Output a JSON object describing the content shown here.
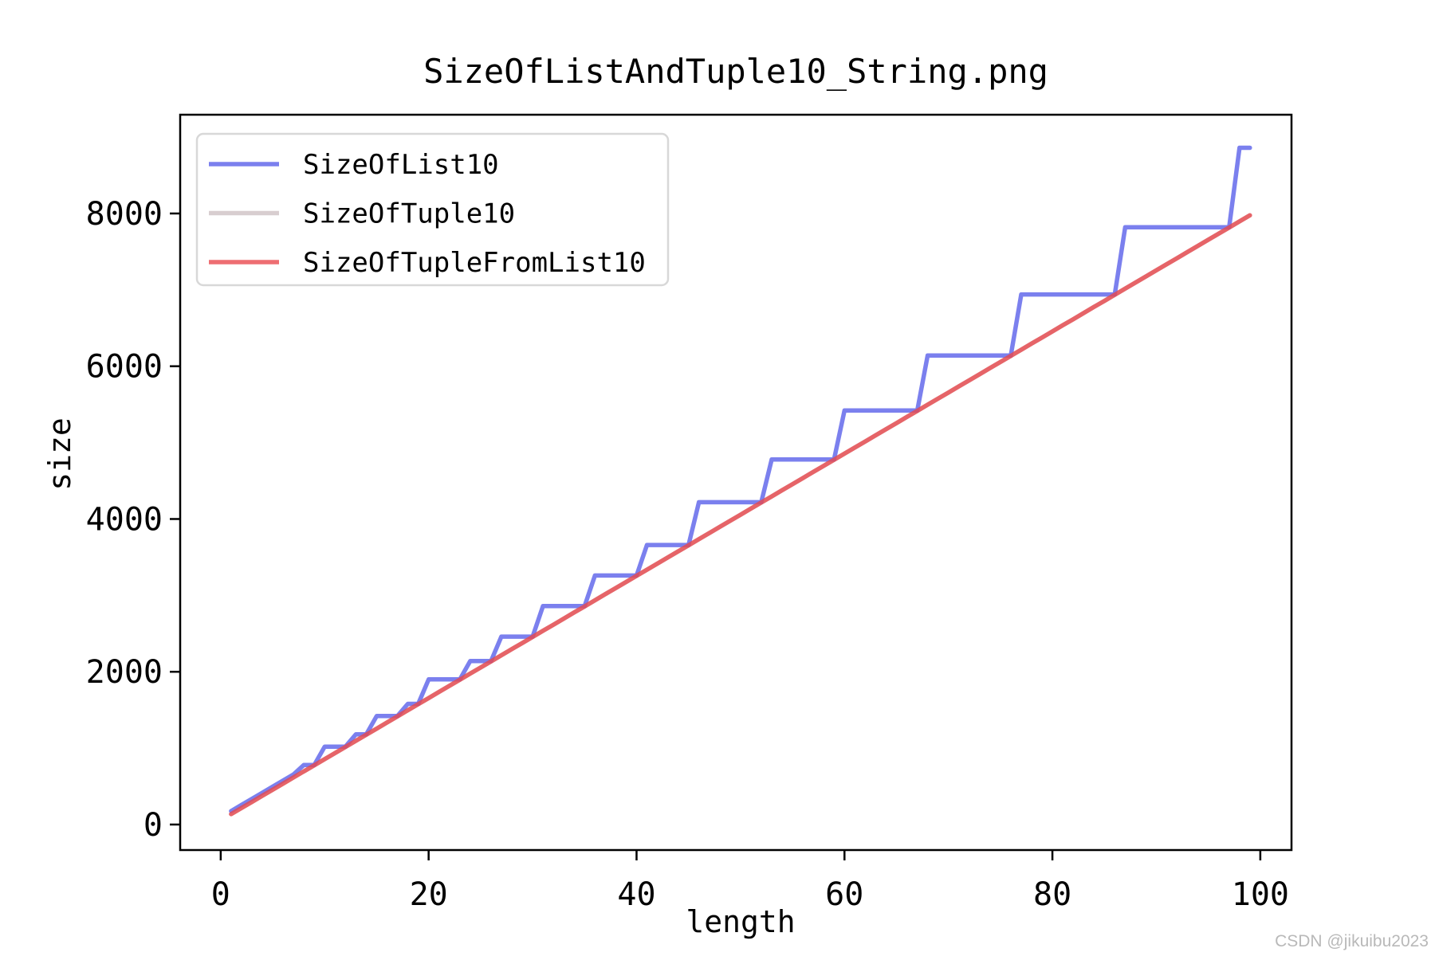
{
  "figure": {
    "background": "#ffffff"
  },
  "watermark": {
    "text": "CSDN @jikuibu2023",
    "color": "#b9b9b9"
  },
  "chart_data": {
    "type": "line",
    "title": "SizeOfListAndTuple10_String.png",
    "xlabel": "length",
    "ylabel": "size",
    "xlim": [
      -3.9,
      103.0
    ],
    "ylim": [
      -334,
      9293
    ],
    "xticks": [
      0,
      20,
      40,
      60,
      80,
      100
    ],
    "yticks": [
      0,
      2000,
      4000,
      6000,
      8000
    ],
    "grid": false,
    "legend_position": "upper-left",
    "axis_color": "#000000",
    "legend_frame_color": "#d8d8d8",
    "x": [
      1,
      2,
      3,
      4,
      5,
      6,
      7,
      8,
      9,
      10,
      11,
      12,
      13,
      14,
      15,
      16,
      17,
      18,
      19,
      20,
      21,
      22,
      23,
      24,
      25,
      26,
      27,
      28,
      29,
      30,
      31,
      32,
      33,
      34,
      35,
      36,
      37,
      38,
      39,
      40,
      41,
      42,
      43,
      44,
      45,
      46,
      47,
      48,
      49,
      50,
      51,
      52,
      53,
      54,
      55,
      56,
      57,
      58,
      59,
      60,
      61,
      62,
      63,
      64,
      65,
      66,
      67,
      68,
      69,
      70,
      71,
      72,
      73,
      74,
      75,
      76,
      77,
      78,
      79,
      80,
      81,
      82,
      83,
      84,
      85,
      86,
      87,
      88,
      89,
      90,
      91,
      92,
      93,
      94,
      95,
      96,
      97,
      98,
      99
    ],
    "series": [
      {
        "name": "SizeOfList10",
        "color": "#7b80ee",
        "stroke": "#5a60ea",
        "opacity": 0.8,
        "values": [
          176,
          256,
          336,
          416,
          496,
          576,
          656,
          780,
          780,
          1020,
          1020,
          1020,
          1180,
          1180,
          1420,
          1420,
          1420,
          1580,
          1580,
          1900,
          1900,
          1900,
          1900,
          2140,
          2140,
          2140,
          2460,
          2460,
          2460,
          2460,
          2860,
          2860,
          2860,
          2860,
          2860,
          3260,
          3260,
          3260,
          3260,
          3260,
          3660,
          3660,
          3660,
          3660,
          3660,
          4220,
          4220,
          4220,
          4220,
          4220,
          4220,
          4220,
          4780,
          4780,
          4780,
          4780,
          4780,
          4780,
          4780,
          5420,
          5420,
          5420,
          5420,
          5420,
          5420,
          5420,
          5420,
          6140,
          6140,
          6140,
          6140,
          6140,
          6140,
          6140,
          6140,
          6140,
          6940,
          6940,
          6940,
          6940,
          6940,
          6940,
          6940,
          6940,
          6940,
          6940,
          7820,
          7820,
          7820,
          7820,
          7820,
          7820,
          7820,
          7820,
          7820,
          7820,
          7820,
          8860,
          8860
        ]
      },
      {
        "name": "SizeOfTuple10",
        "color": "#d8ced0",
        "stroke": "#cebdbf",
        "opacity": 0.8,
        "values": [
          136,
          216,
          296,
          376,
          456,
          536,
          616,
          696,
          776,
          856,
          936,
          1016,
          1096,
          1176,
          1256,
          1336,
          1416,
          1496,
          1576,
          1656,
          1736,
          1816,
          1896,
          1976,
          2056,
          2136,
          2216,
          2296,
          2376,
          2456,
          2536,
          2616,
          2696,
          2776,
          2856,
          2936,
          3016,
          3096,
          3176,
          3256,
          3336,
          3416,
          3496,
          3576,
          3656,
          3736,
          3816,
          3896,
          3976,
          4056,
          4136,
          4216,
          4296,
          4376,
          4456,
          4536,
          4616,
          4696,
          4776,
          4856,
          4936,
          5016,
          5096,
          5176,
          5256,
          5336,
          5416,
          5496,
          5576,
          5656,
          5736,
          5816,
          5896,
          5976,
          6056,
          6136,
          6216,
          6296,
          6376,
          6456,
          6536,
          6616,
          6696,
          6776,
          6856,
          6936,
          7016,
          7096,
          7176,
          7256,
          7336,
          7416,
          7496,
          7576,
          7656,
          7736,
          7816,
          7896,
          7976
        ]
      },
      {
        "name": "SizeOfTupleFromList10",
        "color": "#ee6e72",
        "stroke": "#ea4a4f",
        "opacity": 0.8,
        "values": [
          136,
          216,
          296,
          376,
          456,
          536,
          616,
          696,
          776,
          856,
          936,
          1016,
          1096,
          1176,
          1256,
          1336,
          1416,
          1496,
          1576,
          1656,
          1736,
          1816,
          1896,
          1976,
          2056,
          2136,
          2216,
          2296,
          2376,
          2456,
          2536,
          2616,
          2696,
          2776,
          2856,
          2936,
          3016,
          3096,
          3176,
          3256,
          3336,
          3416,
          3496,
          3576,
          3656,
          3736,
          3816,
          3896,
          3976,
          4056,
          4136,
          4216,
          4296,
          4376,
          4456,
          4536,
          4616,
          4696,
          4776,
          4856,
          4936,
          5016,
          5096,
          5176,
          5256,
          5336,
          5416,
          5496,
          5576,
          5656,
          5736,
          5816,
          5896,
          5976,
          6056,
          6136,
          6216,
          6296,
          6376,
          6456,
          6536,
          6616,
          6696,
          6776,
          6856,
          6936,
          7016,
          7096,
          7176,
          7256,
          7336,
          7416,
          7496,
          7576,
          7656,
          7736,
          7816,
          7896,
          7976
        ]
      }
    ]
  }
}
